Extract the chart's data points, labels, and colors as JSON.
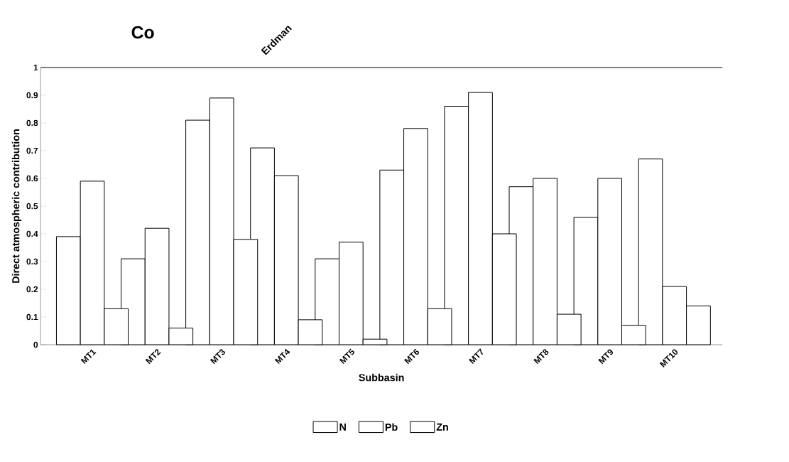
{
  "chart_data": {
    "type": "bar",
    "title": "Co",
    "annotations": [
      "Erdman"
    ],
    "xlabel": "Subbasin",
    "ylabel": "Direct atmospheric contribution",
    "categories": [
      "MT1",
      "MT2",
      "MT3",
      "MT4",
      "MT5",
      "MT6",
      "MT7",
      "MT8",
      "MT9",
      "MT10"
    ],
    "series": [
      {
        "name": "N",
        "color": "#ffffff",
        "values": [
          0.39,
          0.31,
          0.81,
          0.71,
          0.31,
          0.63,
          0.86,
          0.57,
          0.46,
          0.67
        ]
      },
      {
        "name": "Pb",
        "color": "#ffffff",
        "values": [
          0.59,
          0.42,
          0.89,
          0.61,
          0.37,
          0.78,
          0.91,
          0.6,
          0.6,
          0.21
        ]
      },
      {
        "name": "Zn",
        "color": "#ffffff",
        "values": [
          0.13,
          0.06,
          0.38,
          0.09,
          0.02,
          0.13,
          0.4,
          0.11,
          0.07,
          0.14
        ]
      }
    ],
    "ylim": [
      0,
      1
    ],
    "yticks": [
      0,
      0.1,
      0.2,
      0.3,
      0.4,
      0.5,
      0.6,
      0.7,
      0.8,
      0.9,
      1
    ],
    "grid": false,
    "legend": "bottom"
  }
}
